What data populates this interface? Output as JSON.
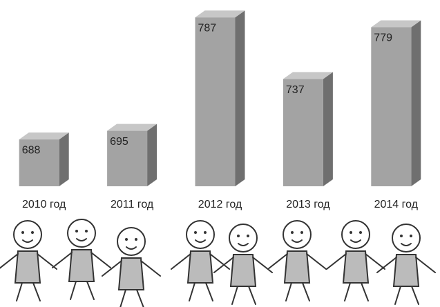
{
  "chart_data": {
    "type": "bar3d",
    "categories": [
      "2010 год",
      "2011 год",
      "2012 год",
      "2013 год",
      "2014 год"
    ],
    "values": [
      688,
      695,
      787,
      737,
      779
    ],
    "color": "#a3a3a3",
    "ylim": [
      650,
      800
    ]
  }
}
